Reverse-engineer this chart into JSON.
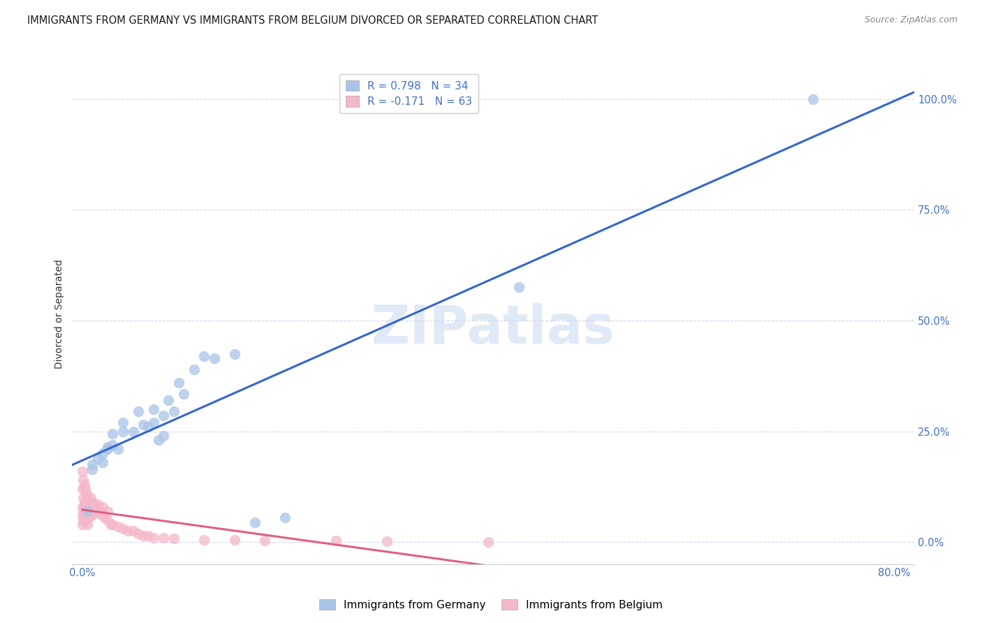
{
  "title": "IMMIGRANTS FROM GERMANY VS IMMIGRANTS FROM BELGIUM DIVORCED OR SEPARATED CORRELATION CHART",
  "source": "Source: ZipAtlas.com",
  "ylabel": "Divorced or Separated",
  "germany_color": "#a8c4e8",
  "germany_line_color": "#3366cc",
  "belgium_color": "#f4b8c8",
  "belgium_line_color": "#e06080",
  "background_color": "#ffffff",
  "grid_color": "#d0d8e8",
  "watermark": "ZIPatlas",
  "ytick_color": "#4472c4",
  "xtick_color": "#4472c4",
  "germany_x": [
    0.5,
    1.0,
    1.0,
    1.5,
    2.0,
    2.0,
    2.5,
    2.5,
    3.0,
    3.0,
    3.5,
    4.0,
    4.0,
    5.0,
    5.5,
    6.0,
    6.5,
    7.0,
    7.0,
    7.5,
    8.0,
    8.0,
    8.5,
    9.0,
    9.5,
    10.0,
    11.0,
    12.0,
    13.0,
    15.0,
    17.0,
    20.0,
    43.0,
    72.0
  ],
  "germany_y": [
    7.0,
    16.5,
    17.5,
    19.0,
    18.0,
    20.0,
    21.5,
    21.0,
    22.0,
    24.5,
    21.0,
    25.0,
    27.0,
    25.0,
    29.5,
    26.5,
    26.0,
    30.0,
    27.0,
    23.0,
    28.5,
    24.0,
    32.0,
    29.5,
    36.0,
    33.5,
    39.0,
    42.0,
    41.5,
    42.5,
    4.5,
    5.5,
    57.5,
    100.0
  ],
  "belgium_x": [
    0.0,
    0.0,
    0.0,
    0.0,
    0.0,
    0.1,
    0.1,
    0.1,
    0.1,
    0.2,
    0.2,
    0.2,
    0.3,
    0.3,
    0.3,
    0.4,
    0.4,
    0.4,
    0.5,
    0.5,
    0.5,
    0.6,
    0.6,
    0.7,
    0.7,
    0.8,
    0.8,
    0.9,
    0.9,
    1.0,
    1.0,
    1.1,
    1.1,
    1.2,
    1.3,
    1.4,
    1.5,
    1.6,
    1.7,
    1.8,
    2.0,
    2.0,
    2.2,
    2.5,
    2.5,
    2.8,
    3.0,
    3.5,
    4.0,
    4.5,
    5.0,
    5.5,
    6.0,
    6.5,
    7.0,
    8.0,
    9.0,
    12.0,
    15.0,
    18.0,
    25.0,
    30.0,
    40.0
  ],
  "belgium_y": [
    4.0,
    6.0,
    8.0,
    12.0,
    16.0,
    5.0,
    7.0,
    10.0,
    14.0,
    6.0,
    9.0,
    13.0,
    5.0,
    8.0,
    12.0,
    6.0,
    9.0,
    11.0,
    4.0,
    7.0,
    10.0,
    5.5,
    8.5,
    6.0,
    9.0,
    7.0,
    10.0,
    6.0,
    8.0,
    7.0,
    9.0,
    6.5,
    8.5,
    7.0,
    7.5,
    8.0,
    8.5,
    7.5,
    7.0,
    6.5,
    6.0,
    8.0,
    5.5,
    5.0,
    7.0,
    4.0,
    4.0,
    3.5,
    3.0,
    2.5,
    2.5,
    2.0,
    1.5,
    1.5,
    1.0,
    1.0,
    0.8,
    0.5,
    0.5,
    0.3,
    0.3,
    0.2,
    0.1
  ],
  "xmin": -1.0,
  "xmax": 82.0,
  "ymin": -5.0,
  "ymax": 108.0,
  "xticks": [
    0.0,
    80.0
  ],
  "xtick_labels": [
    "0.0%",
    "80.0%"
  ],
  "yticks": [
    0.0,
    25.0,
    50.0,
    75.0,
    100.0
  ],
  "ytick_labels": [
    "0.0%",
    "25.0%",
    "50.0%",
    "75.0%",
    "100.0%"
  ],
  "title_fontsize": 10.5,
  "axis_label_fontsize": 10,
  "tick_fontsize": 10.5,
  "legend_fontsize": 11,
  "source_fontsize": 9,
  "watermark_fontsize": 55
}
